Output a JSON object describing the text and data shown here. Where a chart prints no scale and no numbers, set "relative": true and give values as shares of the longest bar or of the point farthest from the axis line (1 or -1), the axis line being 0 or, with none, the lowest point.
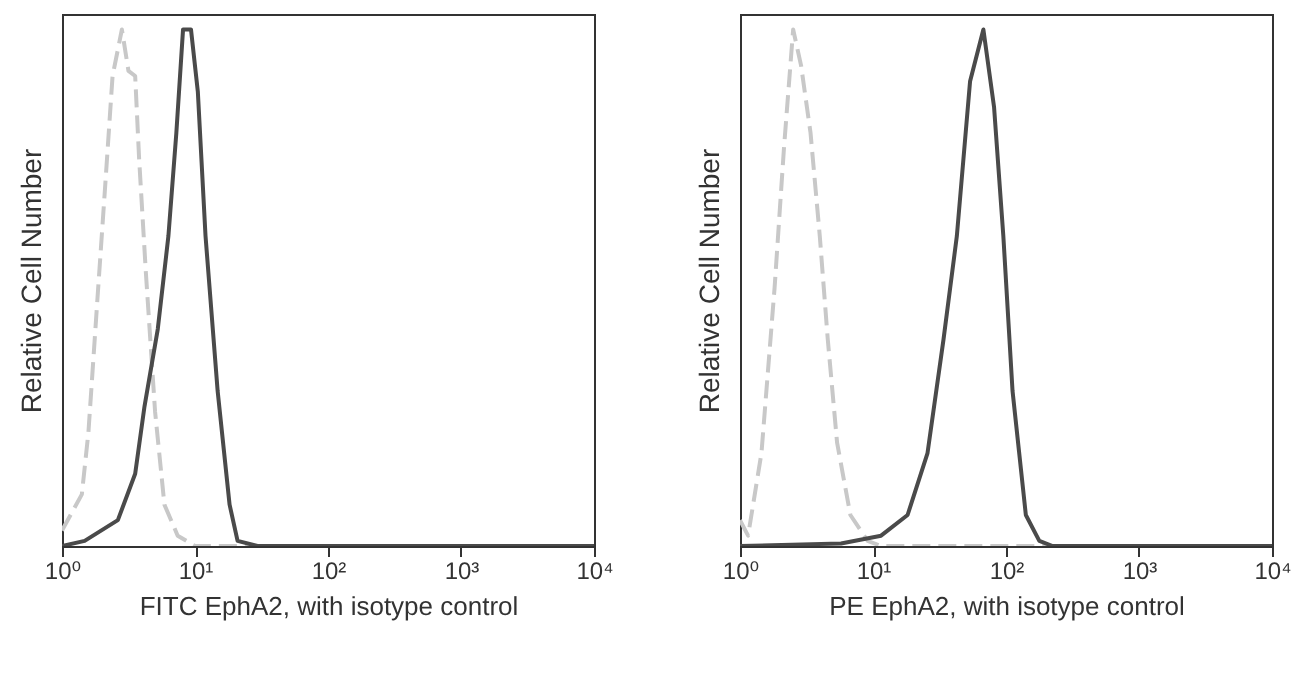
{
  "chart_data": [
    {
      "type": "line",
      "xlabel": "FITC EphA2, with isotype control",
      "ylabel": "Relative Cell Number",
      "relative": true,
      "log": "x",
      "xlim": [
        1,
        10000
      ],
      "xticks": [
        {
          "value": 1,
          "label": "10⁰"
        },
        {
          "value": 10,
          "label": "10¹"
        },
        {
          "value": 100,
          "label": "10²"
        },
        {
          "value": 1000,
          "label": "10³"
        },
        {
          "value": 10000,
          "label": "10⁴"
        }
      ],
      "tick_labels": "x",
      "grid": false,
      "marker": "none",
      "series": [
        {
          "color": "#c8c8c8",
          "line_style": "dashed",
          "x": [
            1,
            1.41,
            1.58,
            1.86,
            2.09,
            2.4,
            2.82,
            3.16,
            3.55,
            3.8,
            4.27,
            5.01,
            5.89,
            7.41,
            10,
            10000
          ],
          "values": [
            0.03,
            0.1,
            0.22,
            0.49,
            0.68,
            0.91,
            1,
            0.92,
            0.91,
            0.75,
            0.53,
            0.26,
            0.08,
            0.02,
            0,
            0
          ]
        },
        {
          "color": "#4a4a4a",
          "line_style": "solid",
          "x": [
            1,
            1.48,
            2.63,
            3.55,
            4.17,
            5.25,
            6.31,
            7.24,
            8.13,
            9.33,
            10.5,
            12,
            14.8,
            18.2,
            20.9,
            29.5,
            10000
          ],
          "values": [
            0,
            0.01,
            0.05,
            0.14,
            0.27,
            0.42,
            0.6,
            0.8,
            1,
            1,
            0.88,
            0.6,
            0.3,
            0.08,
            0.01,
            0,
            0
          ]
        }
      ]
    },
    {
      "type": "line",
      "xlabel": "PE EphA2, with isotype control",
      "ylabel": "Relative Cell Number",
      "relative": true,
      "log": "x",
      "xlim": [
        1,
        10000
      ],
      "xticks": [
        {
          "value": 1,
          "label": "10⁰"
        },
        {
          "value": 10,
          "label": "10¹"
        },
        {
          "value": 100,
          "label": "10²"
        },
        {
          "value": 1000,
          "label": "10³"
        },
        {
          "value": 10000,
          "label": "10⁴"
        }
      ],
      "tick_labels": "x",
      "grid": false,
      "marker": "none",
      "series": [
        {
          "color": "#c8c8c8",
          "line_style": "dashed",
          "x": [
            1,
            1.15,
            1.45,
            1.82,
            2.14,
            2.51,
            2.88,
            3.39,
            3.98,
            4.57,
            5.37,
            6.76,
            9.12,
            11.5,
            10000
          ],
          "values": [
            0.05,
            0.02,
            0.18,
            0.5,
            0.77,
            1,
            0.93,
            0.8,
            0.6,
            0.4,
            0.2,
            0.06,
            0.01,
            0,
            0
          ]
        },
        {
          "color": "#4a4a4a",
          "line_style": "solid",
          "x": [
            1,
            5.75,
            11.5,
            18.2,
            25.7,
            33.9,
            42.7,
            53.7,
            67.6,
            81.3,
            95.5,
            112,
            141,
            178,
            224,
            10000
          ],
          "values": [
            0,
            0.005,
            0.02,
            0.06,
            0.18,
            0.4,
            0.6,
            0.9,
            1,
            0.85,
            0.6,
            0.3,
            0.06,
            0.01,
            0,
            0
          ]
        }
      ]
    }
  ]
}
